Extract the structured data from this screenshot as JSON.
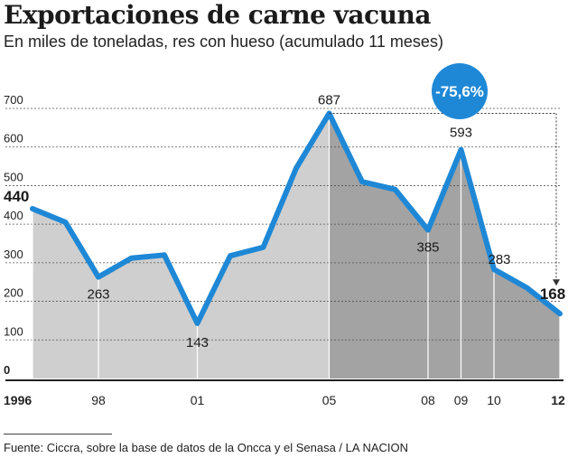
{
  "title": "Exportaciones de carne vacuna",
  "subtitle": "En miles de toneladas, res con hueso (acumulado 11 meses)",
  "source": "Fuente: Ciccra, sobre la base de datos de la Oncca y el  Senasa / LA NACION",
  "callout": "-75,6%",
  "colors": {
    "line": "#1e88d6",
    "fill_light": "#cfcfcf",
    "fill_dark": "#a3a3a3",
    "badge": "#1e88d6"
  },
  "chart_data": {
    "type": "area",
    "title": "Exportaciones de carne vacuna",
    "xlabel": "",
    "ylabel": "En miles de toneladas, res con hueso (acumulado 11 meses)",
    "ylim": [
      0,
      700
    ],
    "yticks": [
      0,
      100,
      200,
      300,
      400,
      500,
      600,
      700
    ],
    "x": [
      1996,
      1997,
      1998,
      1999,
      2000,
      2001,
      2002,
      2003,
      2004,
      2005,
      2006,
      2007,
      2008,
      2009,
      2010,
      2011,
      2012
    ],
    "values": [
      440,
      405,
      263,
      312,
      320,
      143,
      318,
      340,
      545,
      687,
      510,
      490,
      385,
      593,
      283,
      235,
      168
    ],
    "xtick_labels": [
      {
        "x": 1996,
        "label": "1996"
      },
      {
        "x": 1998,
        "label": "98"
      },
      {
        "x": 2001,
        "label": "01"
      },
      {
        "x": 2005,
        "label": "05"
      },
      {
        "x": 2008,
        "label": "08"
      },
      {
        "x": 2009,
        "label": "09"
      },
      {
        "x": 2010,
        "label": "10"
      },
      {
        "x": 2012,
        "label": "12"
      }
    ],
    "data_labels": [
      {
        "x": 1996,
        "value": 440,
        "text": "440"
      },
      {
        "x": 1998,
        "value": 263,
        "text": "263"
      },
      {
        "x": 2001,
        "value": 143,
        "text": "143"
      },
      {
        "x": 2005,
        "value": 687,
        "text": "687"
      },
      {
        "x": 2008,
        "value": 385,
        "text": "385"
      },
      {
        "x": 2009,
        "value": 593,
        "text": "593"
      },
      {
        "x": 2010,
        "value": 283,
        "text": "283"
      },
      {
        "x": 2012,
        "value": 168,
        "text": "168"
      }
    ],
    "shading_split_x": 2005,
    "change_annotation": {
      "from_x": 2005,
      "to_x": 2012,
      "text": "-75,6%"
    }
  }
}
